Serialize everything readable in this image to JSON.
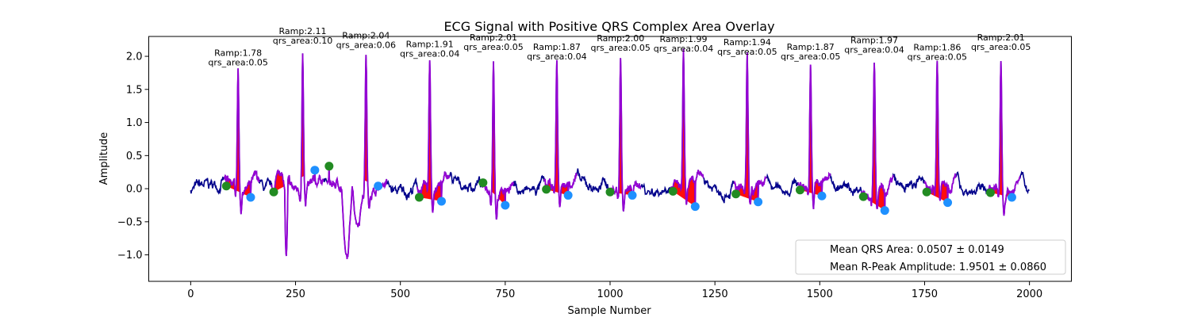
{
  "chart_data": {
    "type": "line",
    "title": "ECG Signal with Positive QRS Complex Area Overlay",
    "xlabel": "Sample Number",
    "ylabel": "Amplitude",
    "xlim": [
      -100,
      2100
    ],
    "ylim": [
      -1.4,
      2.3
    ],
    "xticks": [
      0,
      250,
      500,
      750,
      1000,
      1250,
      1500,
      1750,
      2000
    ],
    "yticks": [
      -1.0,
      -0.5,
      0.0,
      0.5,
      1.0,
      1.5,
      2.0
    ],
    "xtick_labels": [
      "0",
      "250",
      "500",
      "750",
      "1000",
      "1250",
      "1500",
      "1750",
      "2000"
    ],
    "ytick_labels": [
      "−1.0",
      "−0.5",
      "0.0",
      "0.5",
      "1.0",
      "1.5",
      "2.0"
    ],
    "grid": false,
    "legend_position": "bottom-right",
    "legend_entries": [
      "Mean QRS Area: 0.0507 ± 0.0149",
      "Mean R-Peak Amplitude: 1.9501 ± 0.0860"
    ],
    "colors": {
      "signal": "#00008b",
      "qrs_segment": "#9400d3",
      "area_fill": "#ff0000",
      "onset_marker": "#228b22",
      "offset_marker": "#1e90ff"
    },
    "peaks": [
      {
        "x": 113,
        "ramp": 1.78,
        "qrs_area": 0.05,
        "label1": "Ramp:1.78",
        "label2": "qrs_area:0.05"
      },
      {
        "x": 267,
        "ramp": 2.11,
        "qrs_area": 0.1,
        "label1": "Ramp:2.11",
        "label2": "qrs_area:0.10"
      },
      {
        "x": 418,
        "ramp": 2.04,
        "qrs_area": 0.06,
        "label1": "Ramp:2.04",
        "label2": "qrs_area:0.06"
      },
      {
        "x": 570,
        "ramp": 1.91,
        "qrs_area": 0.04,
        "label1": "Ramp:1.91",
        "label2": "qrs_area:0.04"
      },
      {
        "x": 722,
        "ramp": 2.01,
        "qrs_area": 0.05,
        "label1": "Ramp:2.01",
        "label2": "qrs_area:0.05"
      },
      {
        "x": 873,
        "ramp": 1.87,
        "qrs_area": 0.04,
        "label1": "Ramp:1.87",
        "label2": "qrs_area:0.04"
      },
      {
        "x": 1025,
        "ramp": 2.0,
        "qrs_area": 0.05,
        "label1": "Ramp:2.00",
        "label2": "qrs_area:0.05"
      },
      {
        "x": 1175,
        "ramp": 1.99,
        "qrs_area": 0.04,
        "label1": "Ramp:1.99",
        "label2": "qrs_area:0.04"
      },
      {
        "x": 1327,
        "ramp": 1.94,
        "qrs_area": 0.05,
        "label1": "Ramp:1.94",
        "label2": "qrs_area:0.05"
      },
      {
        "x": 1478,
        "ramp": 1.87,
        "qrs_area": 0.05,
        "label1": "Ramp:1.87",
        "label2": "qrs_area:0.05"
      },
      {
        "x": 1630,
        "ramp": 1.97,
        "qrs_area": 0.04,
        "label1": "Ramp:1.97",
        "label2": "qrs_area:0.04"
      },
      {
        "x": 1780,
        "ramp": 1.86,
        "qrs_area": 0.05,
        "label1": "Ramp:1.86",
        "label2": "qrs_area:0.05"
      },
      {
        "x": 1932,
        "ramp": 2.01,
        "qrs_area": 0.05,
        "label1": "Ramp:2.01",
        "label2": "qrs_area:0.05"
      }
    ],
    "onset_points": [
      {
        "x": 85,
        "y": 0.04
      },
      {
        "x": 198,
        "y": -0.05
      },
      {
        "x": 330,
        "y": 0.34
      },
      {
        "x": 545,
        "y": -0.13
      },
      {
        "x": 697,
        "y": 0.09
      },
      {
        "x": 848,
        "y": -0.01
      },
      {
        "x": 1000,
        "y": -0.05
      },
      {
        "x": 1150,
        "y": -0.04
      },
      {
        "x": 1300,
        "y": -0.08
      },
      {
        "x": 1453,
        "y": -0.02
      },
      {
        "x": 1604,
        "y": -0.12
      },
      {
        "x": 1755,
        "y": -0.05
      },
      {
        "x": 1907,
        "y": -0.06
      }
    ],
    "offset_points": [
      {
        "x": 143,
        "y": -0.13
      },
      {
        "x": 296,
        "y": 0.28
      },
      {
        "x": 447,
        "y": 0.04
      },
      {
        "x": 598,
        "y": -0.19
      },
      {
        "x": 750,
        "y": -0.25
      },
      {
        "x": 900,
        "y": -0.1
      },
      {
        "x": 1053,
        "y": -0.1
      },
      {
        "x": 1203,
        "y": -0.27
      },
      {
        "x": 1353,
        "y": -0.2
      },
      {
        "x": 1505,
        "y": -0.11
      },
      {
        "x": 1655,
        "y": -0.33
      },
      {
        "x": 1805,
        "y": -0.21
      },
      {
        "x": 1958,
        "y": -0.13
      }
    ]
  }
}
